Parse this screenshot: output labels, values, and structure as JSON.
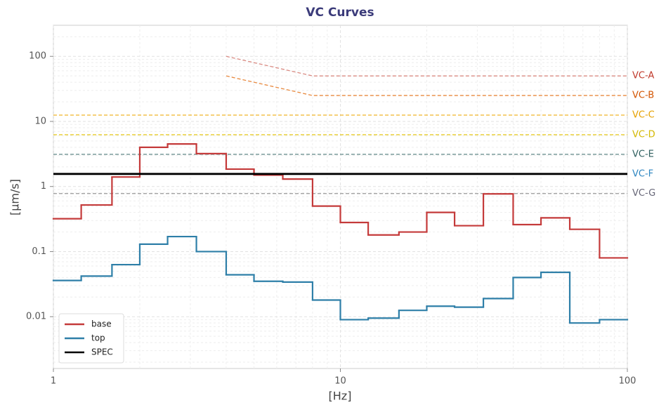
{
  "chart_data": {
    "type": "step",
    "title": "VC Curves",
    "xlabel": "[Hz]",
    "ylabel": "[μm/s]",
    "xscale": "log",
    "yscale": "log",
    "xlim": [
      1,
      100
    ],
    "ylim": [
      0.0016,
      300
    ],
    "xticks": [
      1,
      10,
      100
    ],
    "yticks": [
      0.01,
      0.1,
      1,
      10,
      100
    ],
    "grid": true,
    "minor_grid": true,
    "legend": "lower left",
    "series": [
      {
        "name": "base",
        "color": "#c43a3a",
        "x": [
          1,
          1.25,
          1.6,
          2,
          2.5,
          3.15,
          4,
          5,
          6.3,
          8,
          10,
          12.5,
          16,
          20,
          25,
          31.5,
          40,
          50,
          63,
          80
        ],
        "values": [
          0.32,
          0.52,
          1.4,
          4.0,
          4.5,
          3.2,
          1.85,
          1.5,
          1.3,
          0.5,
          0.28,
          0.18,
          0.2,
          0.4,
          0.25,
          0.77,
          0.26,
          0.33,
          0.22,
          0.08
        ]
      },
      {
        "name": "top",
        "color": "#2e7fa8",
        "x": [
          1,
          1.25,
          1.6,
          2,
          2.5,
          3.15,
          4,
          5,
          6.3,
          8,
          10,
          12.5,
          16,
          20,
          25,
          31.5,
          40,
          50,
          63,
          80
        ],
        "values": [
          0.036,
          0.042,
          0.063,
          0.13,
          0.17,
          0.1,
          0.044,
          0.035,
          0.034,
          0.018,
          0.009,
          0.0095,
          0.0125,
          0.0145,
          0.014,
          0.019,
          0.04,
          0.048,
          0.008,
          0.009
        ]
      },
      {
        "name": "SPEC",
        "color": "#000000",
        "x": [
          1,
          100
        ],
        "values": [
          1.56,
          1.56
        ]
      }
    ],
    "reference_lines": [
      {
        "name": "VC-A",
        "color": "#d98a82",
        "label_color": "#c0392b",
        "x": [
          4,
          8,
          100
        ],
        "values": [
          100,
          50,
          50
        ]
      },
      {
        "name": "VC-B",
        "color": "#e8893f",
        "label_color": "#d35400",
        "x": [
          4,
          8,
          100
        ],
        "values": [
          50,
          25,
          25
        ]
      },
      {
        "name": "VC-C",
        "color": "#f0b429",
        "label_color": "#e6a100",
        "x": [
          1,
          100
        ],
        "values": [
          12.5,
          12.5
        ]
      },
      {
        "name": "VC-D",
        "color": "#e6cc2a",
        "label_color": "#d4b800",
        "x": [
          1,
          100
        ],
        "values": [
          6.25,
          6.25
        ]
      },
      {
        "name": "VC-E",
        "color": "#5f8585",
        "label_color": "#2f5f5f",
        "x": [
          1,
          100
        ],
        "values": [
          3.12,
          3.12
        ]
      },
      {
        "name": "VC-F",
        "color": "#2e86c1",
        "label_color": "#2e86c1",
        "x": [
          1,
          100
        ],
        "values": [
          1.56,
          1.56
        ]
      },
      {
        "name": "VC-G",
        "color": "#999999",
        "label_color": "#666677",
        "x": [
          1,
          100
        ],
        "values": [
          0.78,
          0.78
        ]
      }
    ]
  }
}
